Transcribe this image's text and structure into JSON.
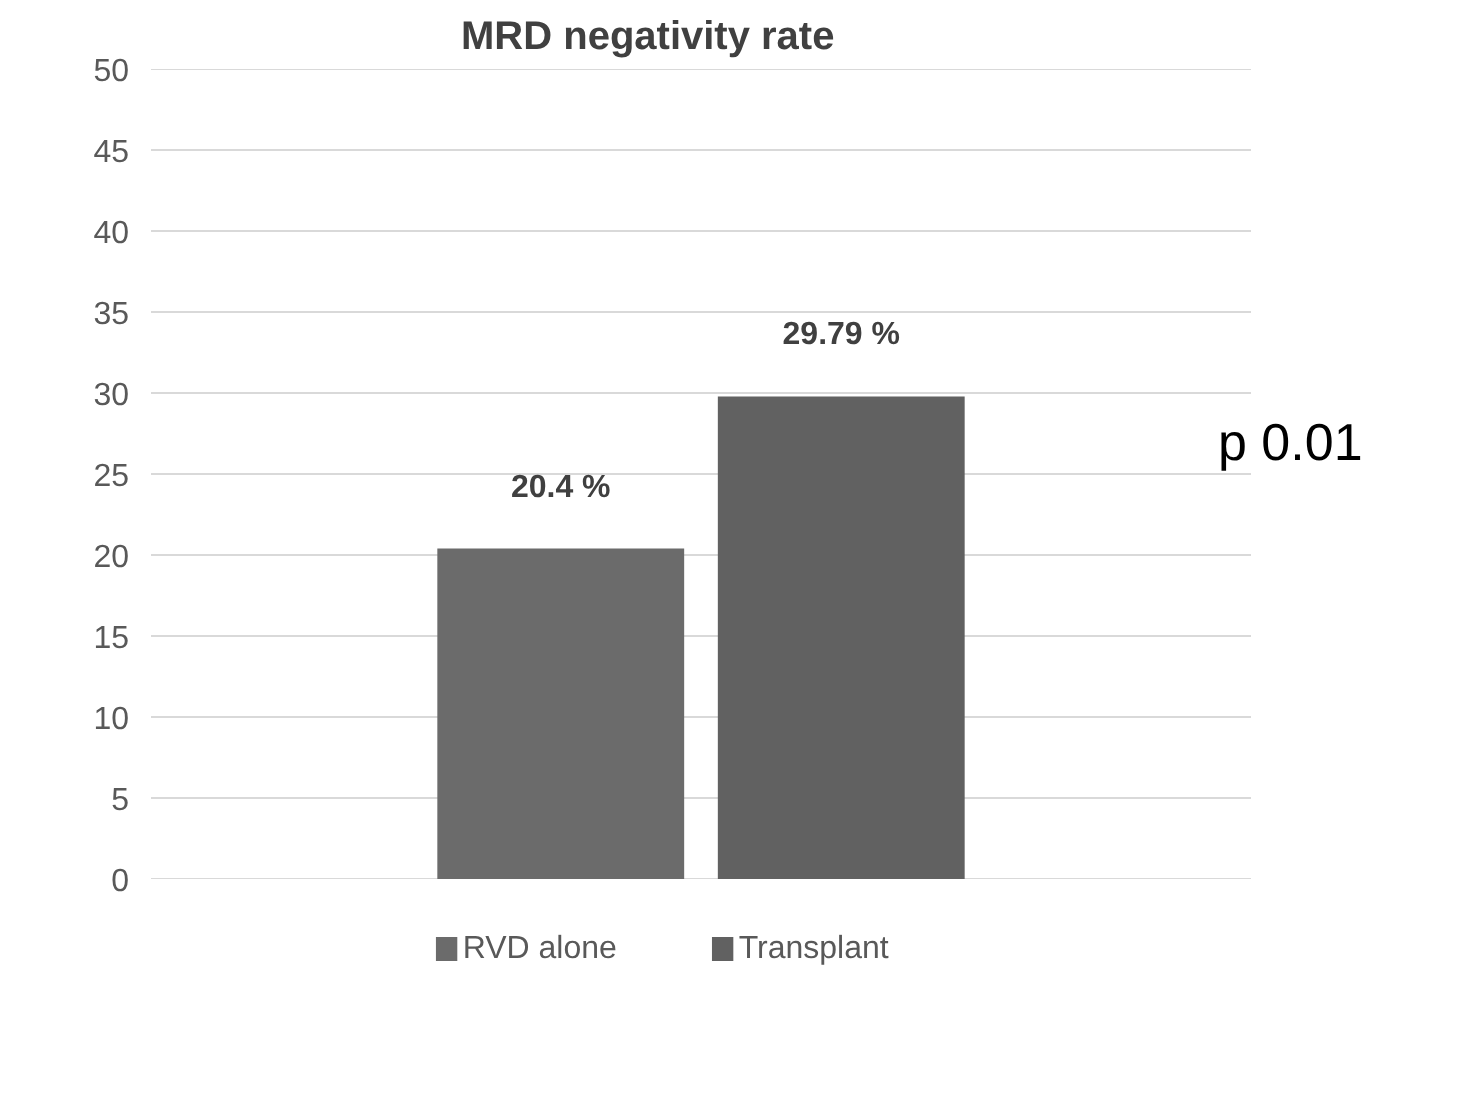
{
  "chart_data": {
    "type": "bar",
    "title": "MRD negativity rate",
    "categories": [
      null
    ],
    "series": [
      {
        "name": "RVD alone",
        "color": "#6b6b6b",
        "values": [
          20.4
        ],
        "value_labels": [
          "20.4 %"
        ]
      },
      {
        "name": "Transplant",
        "color": "#616161",
        "values": [
          29.79
        ],
        "value_labels": [
          "29.79 %"
        ]
      }
    ],
    "ylim": [
      0,
      50
    ],
    "yticks": [
      0,
      5,
      10,
      15,
      20,
      25,
      30,
      35,
      40,
      45,
      50
    ],
    "grid": "y",
    "legend": "bottom",
    "annotations": [
      "p 0.01"
    ]
  }
}
